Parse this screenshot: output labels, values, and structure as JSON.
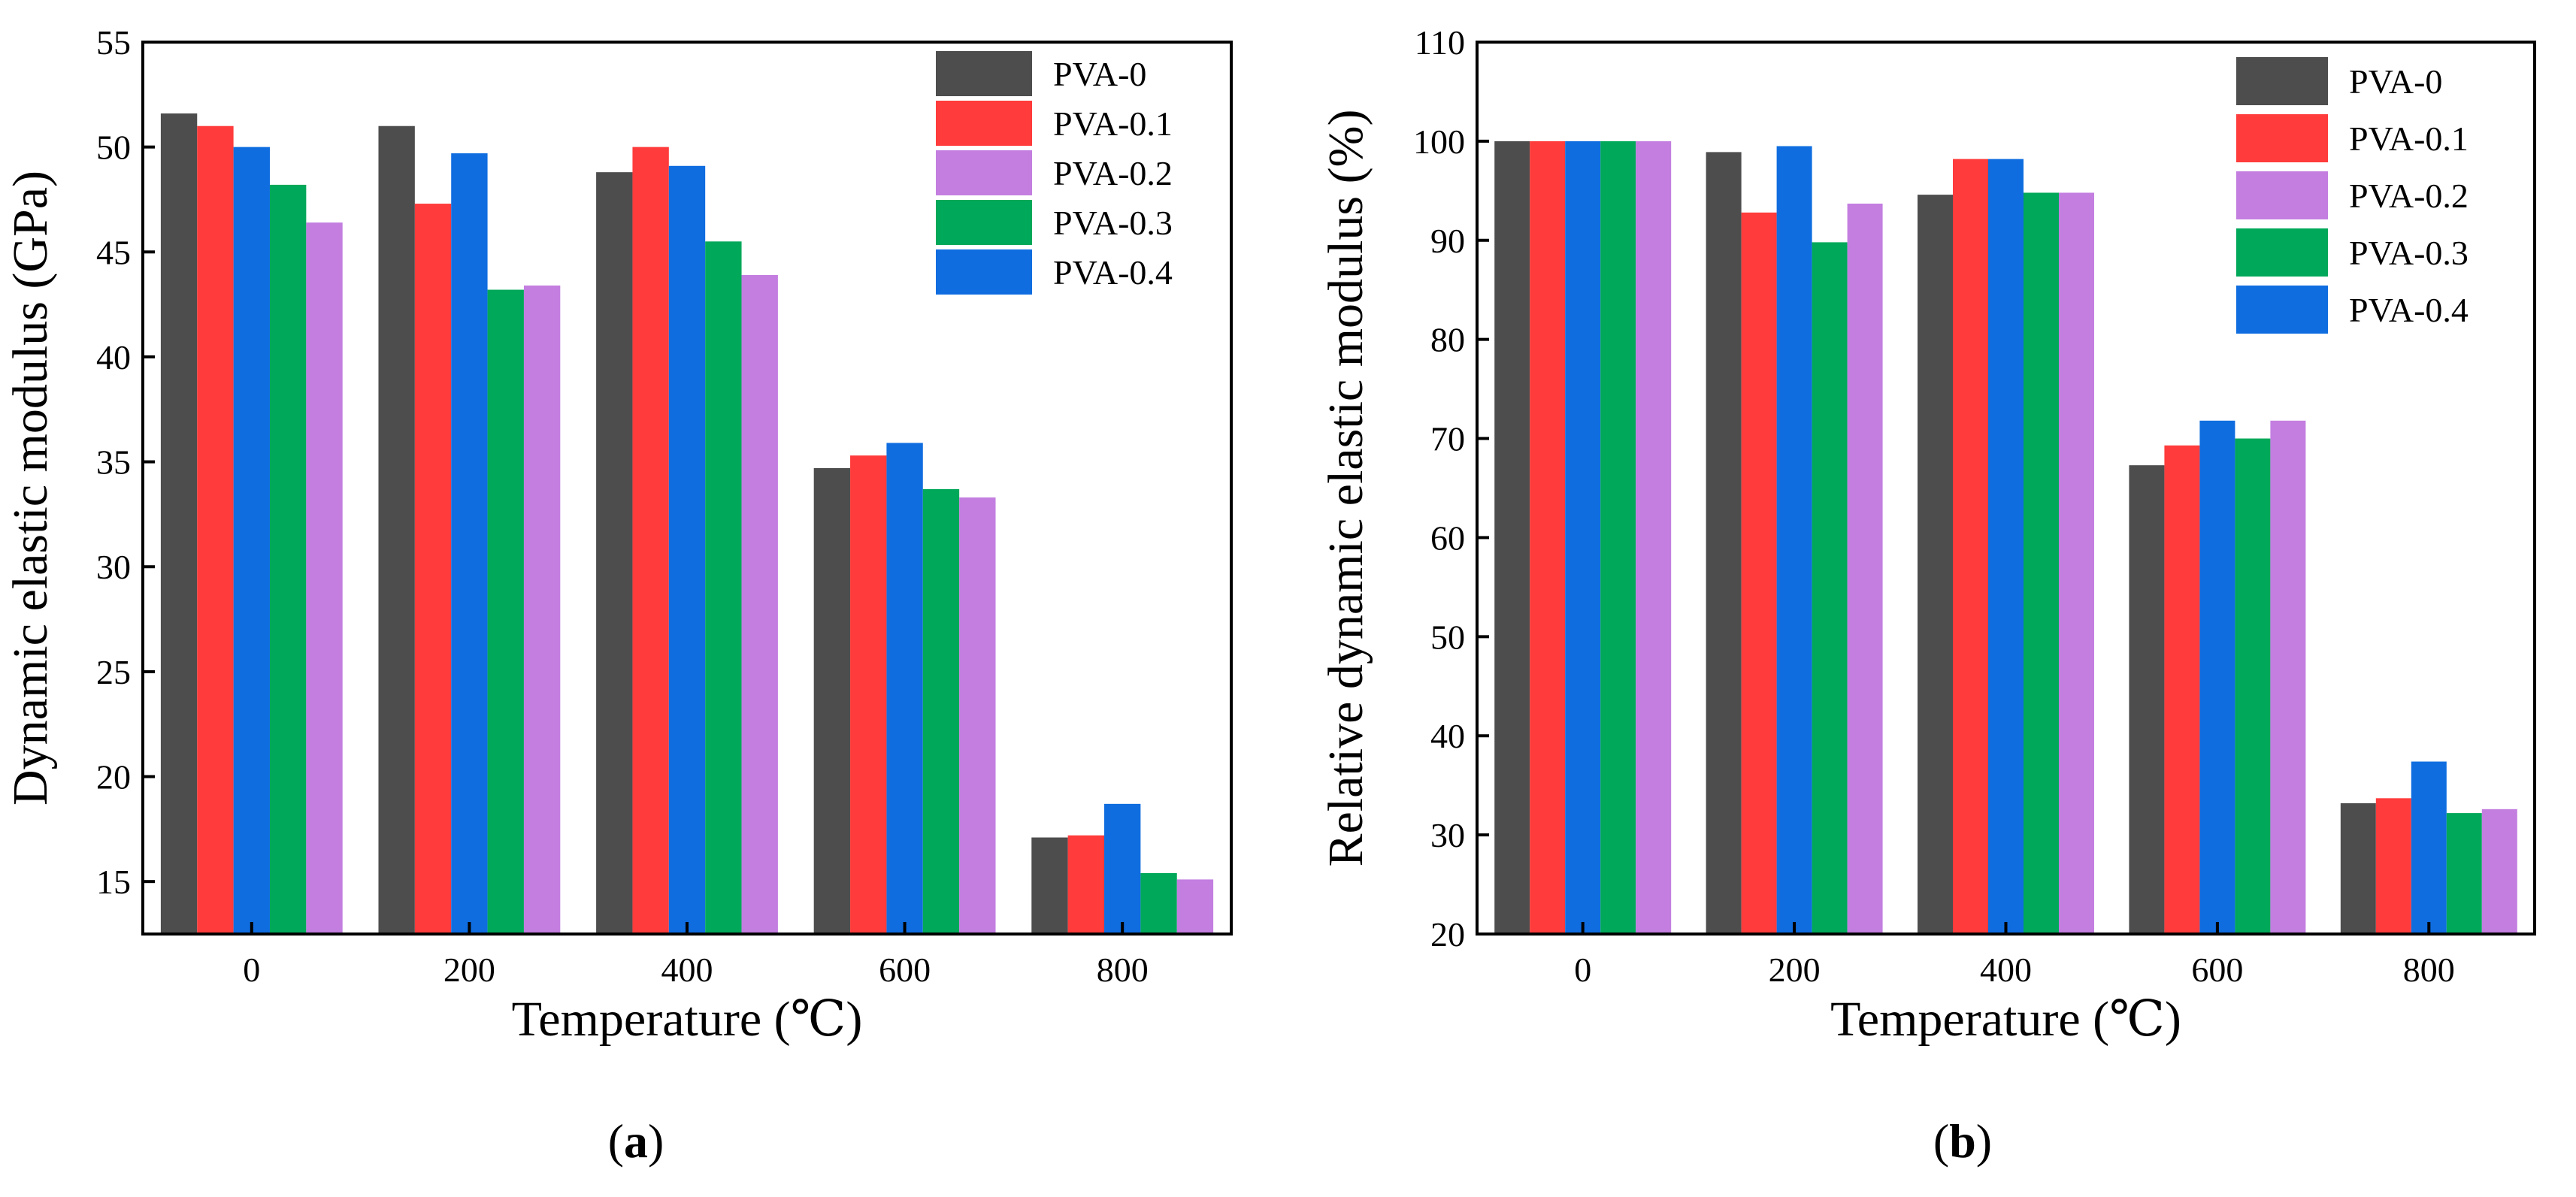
{
  "chart_data": [
    {
      "type": "bar",
      "panel_label": "a",
      "caption_open": "(",
      "caption_close": ")",
      "categories": [
        "0",
        "200",
        "400",
        "600",
        "800"
      ],
      "xlabel": "Temperature (℃)",
      "ylabel": "Dynamic elastic modulus (GPa)",
      "ylim": [
        12.5,
        55
      ],
      "yticks": [
        15,
        20,
        25,
        30,
        35,
        40,
        45,
        50,
        55
      ],
      "legend_position": "top-right",
      "series": [
        {
          "name": "PVA-0",
          "color": "#4d4d4d",
          "values": [
            51.6,
            51.0,
            48.8,
            34.7,
            17.1
          ]
        },
        {
          "name": "PVA-0.1",
          "color": "#ff3b3b",
          "values": [
            51.0,
            47.3,
            50.0,
            35.3,
            17.2
          ]
        },
        {
          "name": "PVA-0.4",
          "color": "#0f6de0",
          "values": [
            50.0,
            49.7,
            49.1,
            35.9,
            18.7
          ]
        },
        {
          "name": "PVA-0.3",
          "color": "#00a859",
          "values": [
            48.2,
            43.2,
            45.5,
            33.7,
            15.4
          ]
        },
        {
          "name": "PVA-0.2",
          "color": "#c37ee0",
          "values": [
            46.4,
            43.4,
            43.9,
            33.3,
            15.1
          ]
        }
      ],
      "legend_order": [
        "PVA-0",
        "PVA-0.1",
        "PVA-0.2",
        "PVA-0.3",
        "PVA-0.4"
      ]
    },
    {
      "type": "bar",
      "panel_label": "b",
      "caption_open": "(",
      "caption_close": ")",
      "categories": [
        "0",
        "200",
        "400",
        "600",
        "800"
      ],
      "xlabel": "Temperature (℃)",
      "ylabel": "Relative dynamic elastic modulus (%)",
      "ylim": [
        20,
        110
      ],
      "yticks": [
        20,
        30,
        40,
        50,
        60,
        70,
        80,
        90,
        100,
        110
      ],
      "legend_position": "top-right",
      "series": [
        {
          "name": "PVA-0",
          "color": "#4d4d4d",
          "values": [
            100,
            98.9,
            94.6,
            67.3,
            33.2
          ]
        },
        {
          "name": "PVA-0.1",
          "color": "#ff3b3b",
          "values": [
            100,
            92.8,
            98.2,
            69.3,
            33.7
          ]
        },
        {
          "name": "PVA-0.4",
          "color": "#0f6de0",
          "values": [
            100,
            99.5,
            98.2,
            71.8,
            37.4
          ]
        },
        {
          "name": "PVA-0.3",
          "color": "#00a859",
          "values": [
            100,
            89.8,
            94.8,
            70.0,
            32.2
          ]
        },
        {
          "name": "PVA-0.2",
          "color": "#c37ee0",
          "values": [
            100,
            93.7,
            94.8,
            71.8,
            32.6
          ]
        }
      ],
      "legend_order": [
        "PVA-0",
        "PVA-0.1",
        "PVA-0.2",
        "PVA-0.3",
        "PVA-0.4"
      ]
    }
  ]
}
